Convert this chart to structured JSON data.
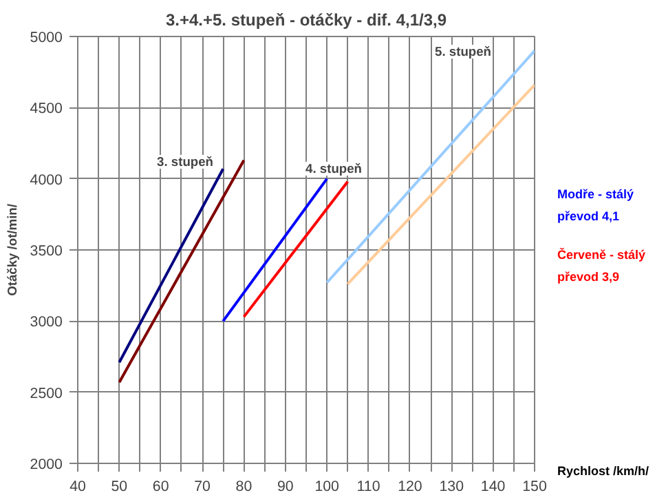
{
  "chart_data": {
    "type": "line",
    "title": "3.+4.+5. stupeň - otáčky - dif. 4,1/3,9",
    "xlabel": "Rychlost /km/h/",
    "ylabel": "Otáčky /ot/min/",
    "xlim": [
      40,
      150
    ],
    "ylim": [
      2000,
      5000
    ],
    "xticks": [
      40,
      {
        "value": 45,
        "label": null
      },
      50,
      {
        "value": 55,
        "label": null
      },
      60,
      {
        "value": 65,
        "label": null
      },
      70,
      {
        "value": 75,
        "label": null
      },
      80,
      {
        "value": 85,
        "label": null
      },
      90,
      {
        "value": 95,
        "label": null
      },
      100,
      {
        "value": 105,
        "label": null
      },
      110,
      {
        "value": 115,
        "label": null
      },
      120,
      {
        "value": 125,
        "label": null
      },
      130,
      {
        "value": 135,
        "label": null
      },
      140,
      {
        "value": 145,
        "label": null
      },
      150
    ],
    "yticks": [
      2000,
      2500,
      3000,
      3500,
      4000,
      4500,
      5000
    ],
    "grid": true,
    "marker": "none",
    "line_style": "solid",
    "series": [
      {
        "color": "#000080",
        "x": [
          50,
          75
        ],
        "values": [
          2710,
          4070
        ]
      },
      {
        "color": "#800000",
        "x": [
          50,
          80
        ],
        "values": [
          2570,
          4130
        ]
      },
      {
        "color": "#0000ff",
        "x": [
          75,
          100
        ],
        "values": [
          3000,
          4000
        ]
      },
      {
        "color": "#ff0000",
        "x": [
          80,
          105
        ],
        "values": [
          3030,
          3980
        ]
      },
      {
        "color": "#99ccff",
        "x": [
          100,
          150
        ],
        "values": [
          3270,
          4900
        ]
      },
      {
        "color": "#ffcc99",
        "x": [
          105,
          150
        ],
        "values": [
          3260,
          4660
        ]
      }
    ],
    "annotations": [
      "3. stupeň",
      "4. stupeň",
      "5. stupeň",
      "Modře - stálý převod 4,1",
      "Červeně - stálý převod 3,9"
    ]
  }
}
